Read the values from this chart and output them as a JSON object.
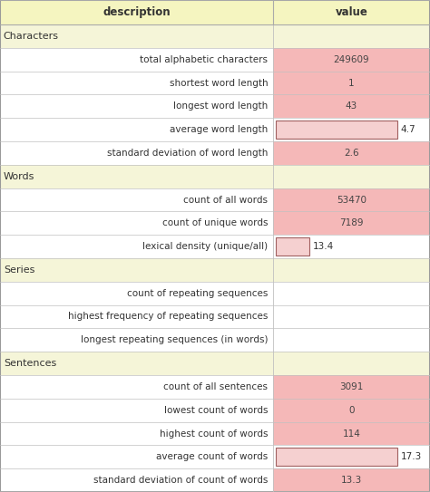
{
  "header": [
    "description",
    "value"
  ],
  "header_bg": "#f5f5c0",
  "header_text_color": "#333333",
  "section_bg": "#f5f5d8",
  "section_text_color": "#333333",
  "data_bg_pink": "#f5b8b8",
  "data_bg_light_pink": "#f5d0d0",
  "row_bg": "#ffffff",
  "border_color": "#c8c8c8",
  "rows": [
    {
      "type": "section",
      "desc": "Characters",
      "value": ""
    },
    {
      "type": "data",
      "desc": "total alphabetic characters",
      "value": "249609",
      "bar": false,
      "bar_pct": 1.0
    },
    {
      "type": "data",
      "desc": "shortest word length",
      "value": "1",
      "bar": false,
      "bar_pct": 1.0
    },
    {
      "type": "data",
      "desc": "longest word length",
      "value": "43",
      "bar": false,
      "bar_pct": 1.0
    },
    {
      "type": "data",
      "desc": "average word length",
      "value": "4.7",
      "bar": true,
      "bar_pct": 0.8
    },
    {
      "type": "data",
      "desc": "standard deviation of word length",
      "value": "2.6",
      "bar": false,
      "bar_pct": 1.0
    },
    {
      "type": "section",
      "desc": "Words",
      "value": ""
    },
    {
      "type": "data",
      "desc": "count of all words",
      "value": "53470",
      "bar": false,
      "bar_pct": 1.0
    },
    {
      "type": "data",
      "desc": "count of unique words",
      "value": "7189",
      "bar": false,
      "bar_pct": 1.0
    },
    {
      "type": "data",
      "desc": "lexical density (unique/all)",
      "value": "13.4",
      "bar": true,
      "bar_pct": 0.22
    },
    {
      "type": "section",
      "desc": "Series",
      "value": ""
    },
    {
      "type": "data",
      "desc": "count of repeating sequences",
      "value": "",
      "bar": false,
      "bar_pct": 0
    },
    {
      "type": "data",
      "desc": "highest frequency of repeating sequences",
      "value": "",
      "bar": false,
      "bar_pct": 0
    },
    {
      "type": "data",
      "desc": "longest repeating sequences (in words)",
      "value": "",
      "bar": false,
      "bar_pct": 0
    },
    {
      "type": "section",
      "desc": "Sentences",
      "value": ""
    },
    {
      "type": "data",
      "desc": "count of all sentences",
      "value": "3091",
      "bar": false,
      "bar_pct": 1.0
    },
    {
      "type": "data",
      "desc": "lowest count of words",
      "value": "0",
      "bar": false,
      "bar_pct": 1.0
    },
    {
      "type": "data",
      "desc": "highest count of words",
      "value": "114",
      "bar": false,
      "bar_pct": 1.0
    },
    {
      "type": "data",
      "desc": "average count of words",
      "value": "17.3",
      "bar": true,
      "bar_pct": 0.8
    },
    {
      "type": "data",
      "desc": "standard deviation of count of words",
      "value": "13.3",
      "bar": false,
      "bar_pct": 1.0
    }
  ],
  "fig_width": 4.74,
  "fig_height": 5.43,
  "dpi": 100,
  "col_split": 0.635,
  "font_size_header": 8.5,
  "font_size_data": 7.5,
  "font_size_section": 8.0
}
